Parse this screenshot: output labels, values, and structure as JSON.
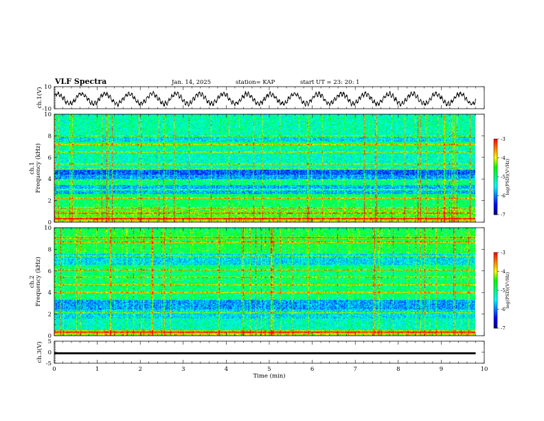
{
  "header": {
    "title": "VLF Spectra",
    "date": "Jan. 14, 2025",
    "station": "station= KAP",
    "start": "start UT =  23: 20: 1"
  },
  "colors": {
    "spectrogram_scale": [
      "#000080",
      "#0000ff",
      "#0080ff",
      "#00ffff",
      "#00ff80",
      "#00ff00",
      "#ffff00",
      "#ff8000",
      "#ff0000",
      "#ffffff"
    ],
    "trace": "#000000"
  },
  "chart_data": [
    {
      "type": "line",
      "name": "ch1-waveform",
      "ylabel": "ch.1(V)",
      "ylim": [
        -10,
        10
      ],
      "ytick_labels": [
        "10",
        "-10"
      ],
      "xlim": [
        0,
        10
      ],
      "description_series": {
        "name": "ch.1",
        "period_min": 0.55,
        "amplitude_v": 4.5,
        "offset_v": -1
      }
    },
    {
      "type": "heatmap",
      "name": "ch1-spectrogram",
      "ylabel": "ch.1\nFrequency (kHz)",
      "ylim": [
        0,
        10
      ],
      "ytick_labels": [
        "0",
        "2",
        "4",
        "6",
        "8",
        "10"
      ],
      "xlim": [
        0,
        9.8
      ],
      "colorbar": {
        "label": "log(PSD)(V²/Hz)",
        "range": [
          -7,
          -3
        ],
        "tick_labels": [
          "-3",
          "-4",
          "-5",
          "-6",
          "-7"
        ]
      },
      "bands": [
        {
          "f_low": 0.0,
          "f_high": 0.4,
          "level": -4.0
        },
        {
          "f_low": 0.4,
          "f_high": 1.2,
          "level": -4.5
        },
        {
          "f_low": 1.2,
          "f_high": 2.6,
          "level": -4.9
        },
        {
          "f_low": 2.6,
          "f_high": 3.4,
          "level": -5.8
        },
        {
          "f_low": 3.4,
          "f_high": 3.8,
          "level": -5.0
        },
        {
          "f_low": 3.8,
          "f_high": 4.4,
          "level": -5.9
        },
        {
          "f_low": 4.4,
          "f_high": 4.9,
          "level": -6.2
        },
        {
          "f_low": 4.9,
          "f_high": 6.8,
          "level": -5.3
        },
        {
          "f_low": 6.8,
          "f_high": 7.5,
          "level": -5.0
        },
        {
          "f_low": 7.5,
          "f_high": 8.1,
          "level": -5.6
        },
        {
          "f_low": 8.1,
          "f_high": 10.0,
          "level": -5.2
        }
      ],
      "lines_khz": [
        0.3,
        0.8,
        1.3,
        2.2,
        3.0,
        3.9,
        4.9,
        5.4,
        6.5,
        7.2,
        8.0
      ]
    },
    {
      "type": "heatmap",
      "name": "ch2-spectrogram",
      "ylabel": "ch.2\nFrequency (kHz)",
      "ylim": [
        0,
        10
      ],
      "ytick_labels": [
        "0",
        "2",
        "4",
        "6",
        "8",
        "10"
      ],
      "xlim": [
        0,
        9.8
      ],
      "colorbar": {
        "label": "log(PSD)(V²/Hz)",
        "range": [
          -7,
          -3
        ],
        "tick_labels": [
          "-3",
          "-4",
          "-5",
          "-6",
          "-7"
        ]
      },
      "bands": [
        {
          "f_low": 0.0,
          "f_high": 0.5,
          "level": -4.1
        },
        {
          "f_low": 0.5,
          "f_high": 1.6,
          "level": -5.3
        },
        {
          "f_low": 1.6,
          "f_high": 2.4,
          "level": -5.6
        },
        {
          "f_low": 2.4,
          "f_high": 3.3,
          "level": -5.9
        },
        {
          "f_low": 3.3,
          "f_high": 4.6,
          "level": -5.0
        },
        {
          "f_low": 4.6,
          "f_high": 6.6,
          "level": -5.0
        },
        {
          "f_low": 6.6,
          "f_high": 7.6,
          "level": -5.6
        },
        {
          "f_low": 7.6,
          "f_high": 10.0,
          "level": -4.8
        }
      ],
      "lines_khz": [
        0.3,
        2.1,
        4.0,
        4.7,
        5.4,
        6.1,
        7.4,
        8.7,
        9.1
      ]
    },
    {
      "type": "line",
      "name": "ch3-waveform",
      "ylabel": "ch.3(V)",
      "ylim": [
        -5,
        5
      ],
      "ytick_labels": [
        "5",
        "0",
        "-5"
      ],
      "xlim": [
        0,
        10
      ],
      "xlabel": "Time (min)",
      "xtick_labels": [
        "0",
        "1",
        "2",
        "3",
        "4",
        "5",
        "6",
        "7",
        "8",
        "9",
        "10"
      ],
      "description_series": {
        "name": "ch.3",
        "level_v": -0.5,
        "thickness_v": 0.9
      }
    }
  ]
}
